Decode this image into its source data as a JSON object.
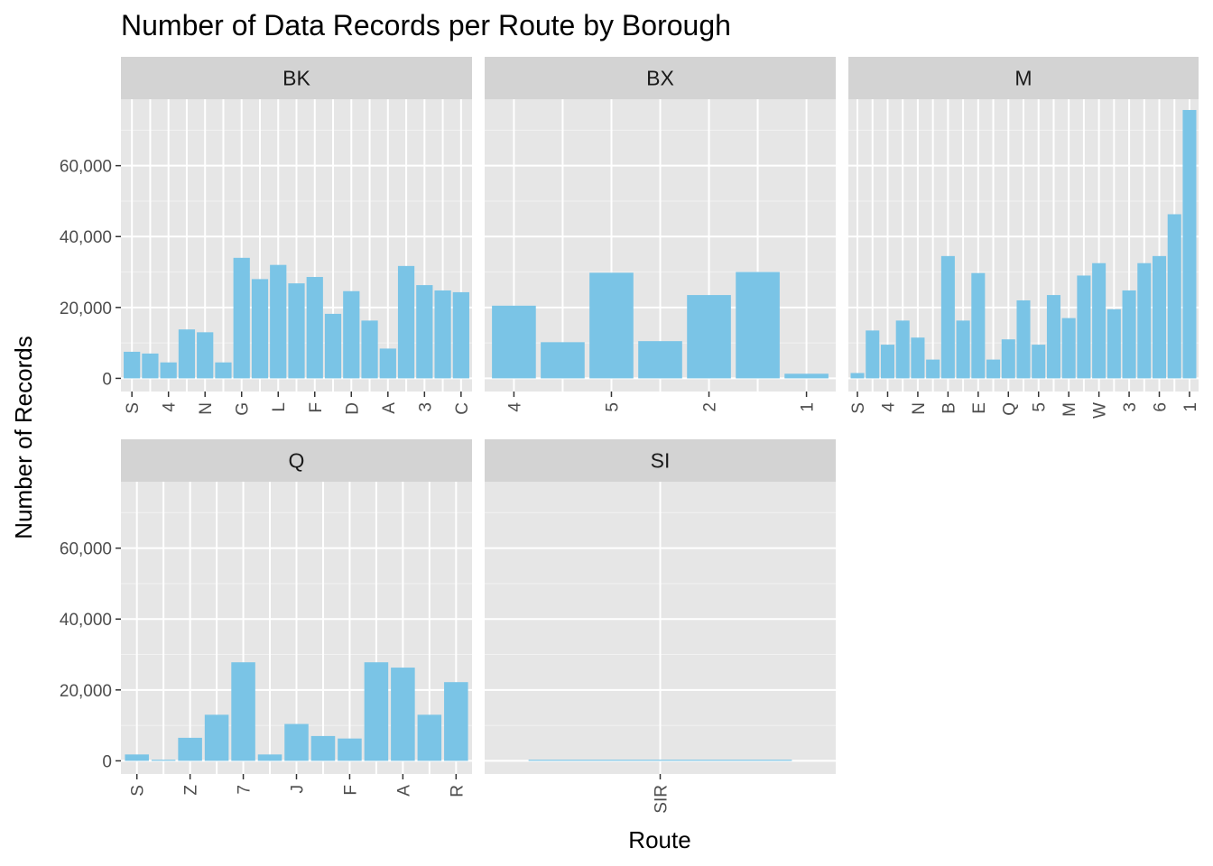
{
  "chart_data": {
    "type": "bar",
    "title": "Number of Data Records per Route by Borough",
    "xlabel": "Route",
    "ylabel": "Number of Records",
    "ylim": [
      0,
      78000
    ],
    "yticks": [
      0,
      20000,
      40000,
      60000
    ],
    "ytick_labels": [
      "0",
      "20,000",
      "40,000",
      "60,000"
    ],
    "bar_color": "#7AC4E6",
    "panel_bg": "#E6E6E6",
    "strip_bg": "#D3D3D3",
    "facets": [
      {
        "name": "BK",
        "categories": [
          "S",
          "",
          "4",
          "",
          "N",
          "",
          "G",
          "",
          "L",
          "",
          "F",
          "",
          "D",
          "",
          "A",
          "",
          "3",
          "",
          "C"
        ],
        "tick_labels": [
          "S",
          "4",
          "N",
          "G",
          "L",
          "F",
          "D",
          "A",
          "3",
          "C"
        ],
        "values": [
          7500,
          7000,
          4500,
          13800,
          13000,
          4500,
          34000,
          28000,
          32000,
          26800,
          28600,
          18200,
          24600,
          16300,
          8400,
          31700,
          26300,
          24800,
          24300
        ]
      },
      {
        "name": "BX",
        "categories": [
          "4",
          "",
          "5",
          "",
          "2",
          "",
          "1"
        ],
        "tick_labels": [
          "4",
          "5",
          "2",
          "1"
        ],
        "values": [
          20500,
          10200,
          29800,
          10500,
          23500,
          30000,
          1300
        ]
      },
      {
        "name": "M",
        "categories": [
          "S",
          "",
          "4",
          "",
          "N",
          "",
          "B",
          "",
          "E",
          "",
          "Q",
          "",
          "5",
          "",
          "M",
          "",
          "W",
          "",
          "3",
          "",
          "6",
          "",
          "1"
        ],
        "tick_labels": [
          "S",
          "4",
          "N",
          "B",
          "E",
          "Q",
          "5",
          "M",
          "W",
          "3",
          "6",
          "1"
        ],
        "values": [
          1500,
          13500,
          9500,
          16300,
          11500,
          5300,
          34500,
          16300,
          29700,
          5300,
          11000,
          22000,
          9500,
          23500,
          17000,
          29000,
          32500,
          19500,
          24800,
          32500,
          34500,
          46300,
          75700
        ]
      },
      {
        "name": "Q",
        "categories": [
          "S",
          "",
          "Z",
          "",
          "7",
          "",
          "J",
          "",
          "F",
          "",
          "A",
          "",
          "R"
        ],
        "tick_labels": [
          "S",
          "Z",
          "7",
          "J",
          "F",
          "A",
          "R"
        ],
        "values": [
          1800,
          300,
          6500,
          13000,
          27800,
          1800,
          10400,
          7000,
          6300,
          27800,
          26300,
          13000,
          22200
        ]
      },
      {
        "name": "SI",
        "categories": [
          "SIR"
        ],
        "tick_labels": [
          "SIR"
        ],
        "values": [
          300
        ]
      }
    ]
  }
}
